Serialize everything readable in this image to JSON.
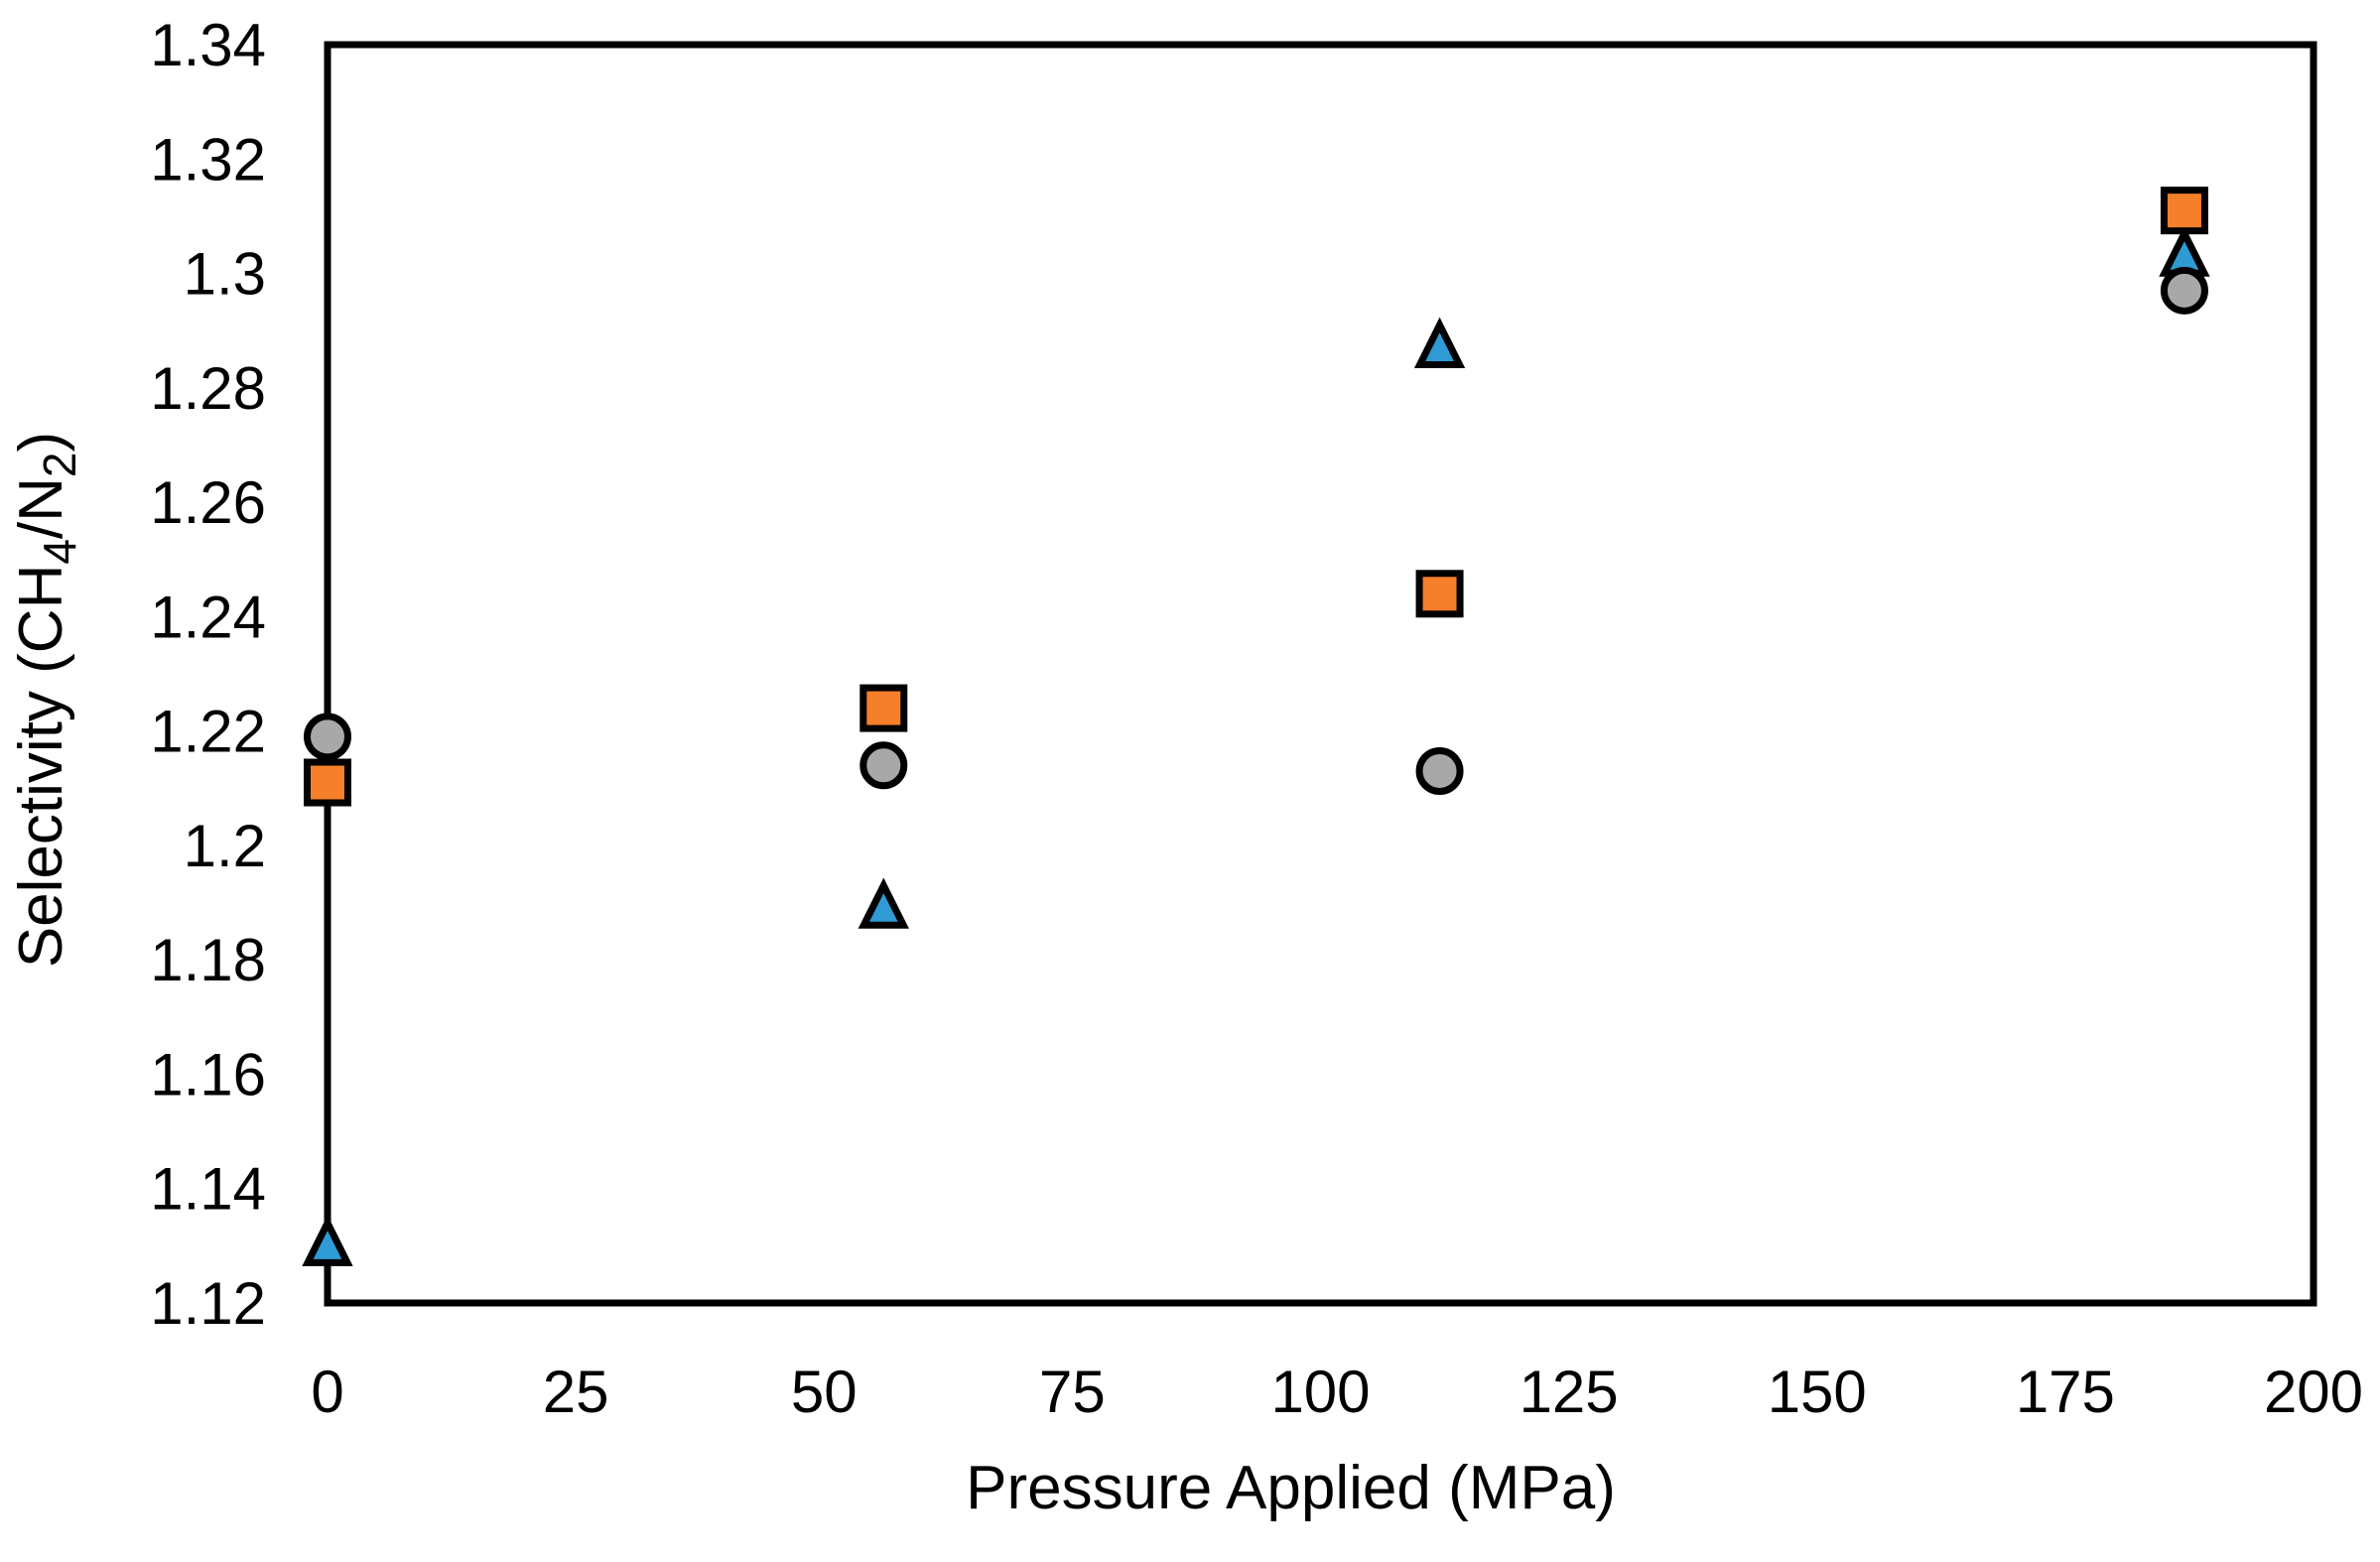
{
  "chart_data": {
    "type": "scatter",
    "title": "",
    "xlabel": "Pressure Applied (MPa)",
    "ylabel": "Selectivity (CH4/N2)",
    "ylabel_segments": [
      {
        "t": "Selectivity (CH",
        "sub": false
      },
      {
        "t": "4",
        "sub": true
      },
      {
        "t": "/N",
        "sub": false
      },
      {
        "t": "2",
        "sub": true
      },
      {
        "t": ")",
        "sub": false
      }
    ],
    "xlim": [
      0,
      200
    ],
    "ylim": [
      1.12,
      1.34
    ],
    "x_ticks": [
      0,
      25,
      50,
      75,
      100,
      125,
      150,
      175,
      200
    ],
    "x_tick_labels": [
      "0",
      "25",
      "50",
      "75",
      "100",
      "125",
      "150",
      "175",
      "200"
    ],
    "y_ticks": [
      1.12,
      1.14,
      1.16,
      1.18,
      1.2,
      1.22,
      1.24,
      1.26,
      1.28,
      1.3,
      1.32,
      1.34
    ],
    "y_tick_labels": [
      "1.12",
      "1.14",
      "1.16",
      "1.18",
      "1.2",
      "1.22",
      "1.24",
      "1.26",
      "1.28",
      "1.3",
      "1.32",
      "1.34"
    ],
    "grid": false,
    "legend_position": "none",
    "axis_color": "#000000",
    "marker_outline_color": "#000000",
    "series": [
      {
        "name": "blue-triangle-series",
        "marker": "triangle",
        "color": "#2E9BD5",
        "x": [
          0,
          56,
          112,
          187
        ],
        "y": [
          1.13,
          1.189,
          1.287,
          1.303
        ]
      },
      {
        "name": "orange-square-series",
        "marker": "square",
        "color": "#F57F2A",
        "x": [
          0,
          56,
          112,
          187
        ],
        "y": [
          1.211,
          1.224,
          1.244,
          1.311
        ]
      },
      {
        "name": "gray-circle-series",
        "marker": "circle",
        "color": "#A8A8A8",
        "x": [
          0,
          56,
          112,
          187
        ],
        "y": [
          1.219,
          1.214,
          1.213,
          1.297
        ]
      }
    ]
  }
}
